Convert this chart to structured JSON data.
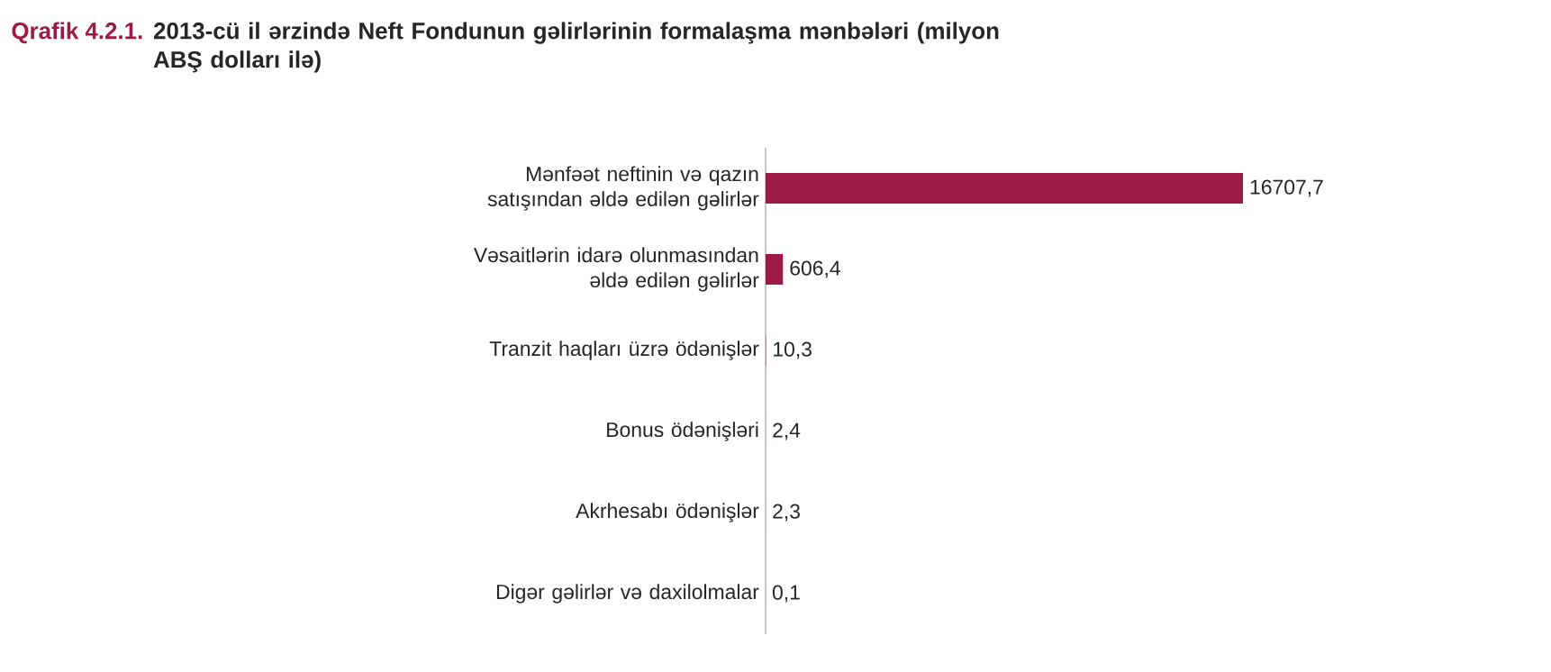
{
  "chart_data": {
    "type": "bar",
    "orientation": "horizontal",
    "title": "Qrafik 4.2.1.",
    "subtitle": "2013-cü il ərzində Neft Fondunun gəlirlərinin formalaşma mənbələri (milyon ABŞ dolları ilə)",
    "categories": [
      "Mənfəət neftinin və qazın satışından əldə edilən gəlirlər",
      "Vəsaitlərin idarə olunmasından əldə edilən gəlirlər",
      "Tranzit haqları üzrə ödənişlər",
      "Bonus ödənişləri",
      "Akrhesabı ödənişlər",
      "Digər gəlirlər və daxilolmalar"
    ],
    "values": [
      16707.7,
      606.4,
      10.3,
      2.4,
      2.3,
      0.1
    ],
    "value_labels": [
      "16707,7",
      "606,4",
      "10,3",
      "2,4",
      "2,3",
      "0,1"
    ],
    "color": "#9b1b45"
  }
}
